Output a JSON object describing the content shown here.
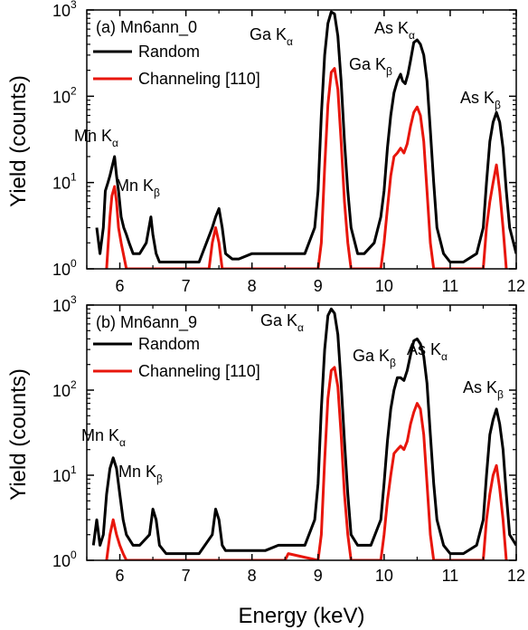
{
  "chart_data": [
    {
      "type": "line",
      "panel_label": "(a) Mn6ann_0",
      "xlabel": "",
      "ylabel": "Yield (counts)",
      "xlim": [
        5.5,
        12
      ],
      "ylim": [
        1,
        1000
      ],
      "yscale": "log",
      "x_ticks": [
        "6",
        "7",
        "8",
        "9",
        "10",
        "11",
        "12"
      ],
      "y_ticks": [
        {
          "base": "10",
          "exp": "0"
        },
        {
          "base": "10",
          "exp": "1"
        },
        {
          "base": "10",
          "exp": "2"
        },
        {
          "base": "10",
          "exp": "3"
        }
      ],
      "legend_position": "top-left",
      "series": [
        {
          "name": "Random",
          "color": "#000000",
          "x": [
            5.65,
            5.7,
            5.75,
            5.78,
            5.82,
            5.85,
            5.88,
            5.92,
            5.95,
            5.98,
            6.02,
            6.06,
            6.1,
            6.14,
            6.2,
            6.3,
            6.4,
            6.47,
            6.5,
            6.55,
            6.6,
            6.7,
            6.8,
            7.0,
            7.2,
            7.4,
            7.45,
            7.5,
            7.55,
            7.6,
            7.7,
            7.8,
            8.0,
            8.2,
            8.4,
            8.6,
            8.8,
            8.95,
            9.0,
            9.05,
            9.1,
            9.15,
            9.2,
            9.25,
            9.3,
            9.35,
            9.4,
            9.45,
            9.5,
            9.6,
            9.7,
            9.85,
            9.95,
            10.0,
            10.05,
            10.1,
            10.15,
            10.2,
            10.25,
            10.28,
            10.32,
            10.36,
            10.4,
            10.45,
            10.5,
            10.55,
            10.6,
            10.65,
            10.7,
            10.75,
            10.8,
            10.9,
            11.0,
            11.2,
            11.4,
            11.5,
            11.55,
            11.6,
            11.65,
            11.7,
            11.75,
            11.8,
            11.85,
            11.9,
            12.0
          ],
          "y": [
            3,
            1.5,
            3,
            8,
            10,
            12,
            15,
            20,
            12,
            8,
            4,
            3,
            2.5,
            2,
            1.5,
            1.5,
            2,
            4,
            2.5,
            1.5,
            1.2,
            1.2,
            1.2,
            1.2,
            1.2,
            3,
            4,
            5,
            3,
            1.5,
            1.3,
            1.3,
            1.5,
            1.5,
            1.5,
            1.5,
            1.5,
            3,
            8,
            60,
            300,
            700,
            950,
            900,
            500,
            150,
            30,
            8,
            3,
            1.5,
            1.5,
            2,
            4,
            8,
            25,
            60,
            110,
            150,
            180,
            150,
            140,
            180,
            260,
            420,
            450,
            400,
            300,
            150,
            40,
            10,
            3,
            1.5,
            1.2,
            1.2,
            1.5,
            3,
            10,
            30,
            50,
            65,
            50,
            25,
            8,
            3,
            1.5
          ]
        },
        {
          "name": "Channeling [110]",
          "color": "#e8160c",
          "x": [
            5.8,
            5.85,
            5.88,
            5.92,
            5.95,
            5.98,
            6.02,
            6.1,
            7.35,
            7.4,
            7.45,
            7.5,
            7.55,
            9.0,
            9.05,
            9.1,
            9.15,
            9.2,
            9.25,
            9.3,
            9.35,
            9.4,
            9.45,
            9.5,
            9.95,
            10.0,
            10.05,
            10.1,
            10.15,
            10.2,
            10.25,
            10.3,
            10.35,
            10.4,
            10.45,
            10.5,
            10.55,
            10.6,
            10.65,
            10.7,
            10.75,
            11.5,
            11.55,
            11.6,
            11.65,
            11.7,
            11.75,
            11.8,
            11.85
          ],
          "y": [
            1,
            4,
            7,
            9,
            6,
            3,
            2,
            1,
            1,
            2,
            3,
            2,
            1,
            1,
            2,
            15,
            80,
            190,
            210,
            120,
            30,
            6,
            2,
            1,
            1,
            2,
            5,
            12,
            20,
            22,
            25,
            22,
            28,
            45,
            65,
            75,
            60,
            30,
            8,
            2,
            1,
            1,
            3,
            6,
            10,
            16,
            8,
            3,
            1
          ]
        }
      ],
      "annotations": [
        {
          "base": "Mn K",
          "sub": "α"
        },
        {
          "base": "Mn K",
          "sub": "β"
        },
        {
          "base": "Ga K",
          "sub": "α"
        },
        {
          "base": "Ga K",
          "sub": "β"
        },
        {
          "base": "As K",
          "sub": "α"
        },
        {
          "base": "As K",
          "sub": "β"
        }
      ]
    },
    {
      "type": "line",
      "panel_label": "(b) Mn6ann_9",
      "xlabel": "Energy (keV)",
      "ylabel": "Yield (counts)",
      "xlim": [
        5.5,
        12
      ],
      "ylim": [
        1,
        1000
      ],
      "yscale": "log",
      "x_ticks": [
        "6",
        "7",
        "8",
        "9",
        "10",
        "11",
        "12"
      ],
      "y_ticks": [
        {
          "base": "10",
          "exp": "0"
        },
        {
          "base": "10",
          "exp": "1"
        },
        {
          "base": "10",
          "exp": "2"
        },
        {
          "base": "10",
          "exp": "3"
        }
      ],
      "legend_position": "top-left",
      "series": [
        {
          "name": "Random",
          "color": "#000000",
          "x": [
            5.6,
            5.65,
            5.7,
            5.75,
            5.8,
            5.85,
            5.9,
            5.95,
            6.0,
            6.05,
            6.1,
            6.2,
            6.3,
            6.45,
            6.5,
            6.55,
            6.6,
            6.7,
            6.8,
            7.0,
            7.2,
            7.4,
            7.45,
            7.5,
            7.55,
            7.6,
            7.8,
            8.0,
            8.2,
            8.4,
            8.6,
            8.8,
            8.95,
            9.0,
            9.05,
            9.1,
            9.15,
            9.2,
            9.25,
            9.3,
            9.35,
            9.4,
            9.45,
            9.5,
            9.6,
            9.7,
            9.8,
            9.95,
            10.0,
            10.05,
            10.1,
            10.15,
            10.2,
            10.25,
            10.3,
            10.35,
            10.4,
            10.45,
            10.5,
            10.55,
            10.6,
            10.65,
            10.7,
            10.75,
            10.8,
            10.9,
            11.0,
            11.2,
            11.4,
            11.5,
            11.55,
            11.6,
            11.65,
            11.7,
            11.75,
            11.8,
            11.85,
            11.9,
            12.0
          ],
          "y": [
            1.5,
            3,
            1.5,
            2,
            6,
            12,
            16,
            12,
            6,
            3,
            2,
            1.5,
            1.5,
            2,
            4,
            3,
            1.5,
            1.2,
            1.2,
            1.2,
            1.2,
            2,
            4,
            3,
            1.5,
            1.3,
            1.3,
            1.3,
            1.3,
            1.5,
            1.5,
            1.5,
            3,
            8,
            60,
            300,
            750,
            900,
            800,
            450,
            120,
            25,
            6,
            2,
            1.5,
            1.5,
            1.5,
            3,
            8,
            25,
            60,
            100,
            140,
            140,
            130,
            170,
            260,
            380,
            400,
            350,
            250,
            120,
            30,
            8,
            3,
            1.5,
            1.2,
            1.2,
            1.5,
            3,
            10,
            30,
            45,
            60,
            40,
            20,
            6,
            2,
            1.5
          ]
        },
        {
          "name": "Channeling [110]",
          "color": "#e8160c",
          "x": [
            5.8,
            5.85,
            5.9,
            5.95,
            6.0,
            6.05,
            6.1,
            8.5,
            8.55,
            9.0,
            9.05,
            9.1,
            9.15,
            9.2,
            9.25,
            9.3,
            9.35,
            9.4,
            9.45,
            9.5,
            9.95,
            10.0,
            10.05,
            10.1,
            10.15,
            10.2,
            10.25,
            10.3,
            10.35,
            10.4,
            10.45,
            10.5,
            10.55,
            10.6,
            10.65,
            10.7,
            10.75,
            11.5,
            11.55,
            11.6,
            11.65,
            11.7,
            11.75,
            11.8,
            11.85
          ],
          "y": [
            1,
            2,
            3,
            2,
            1.5,
            1.2,
            1,
            1,
            1.2,
            1,
            2,
            15,
            80,
            170,
            185,
            110,
            30,
            6,
            2,
            1,
            1,
            2,
            5,
            10,
            18,
            20,
            22,
            20,
            25,
            40,
            55,
            70,
            60,
            30,
            8,
            2,
            1,
            1,
            3,
            6,
            10,
            13,
            7,
            3,
            1
          ]
        }
      ],
      "annotations": [
        {
          "base": "Mn K",
          "sub": "α"
        },
        {
          "base": "Mn K",
          "sub": "β"
        },
        {
          "base": "Ga K",
          "sub": "α"
        },
        {
          "base": "Ga K",
          "sub": "β"
        },
        {
          "base": "As K",
          "sub": "α"
        },
        {
          "base": "As K",
          "sub": "β"
        }
      ]
    }
  ]
}
